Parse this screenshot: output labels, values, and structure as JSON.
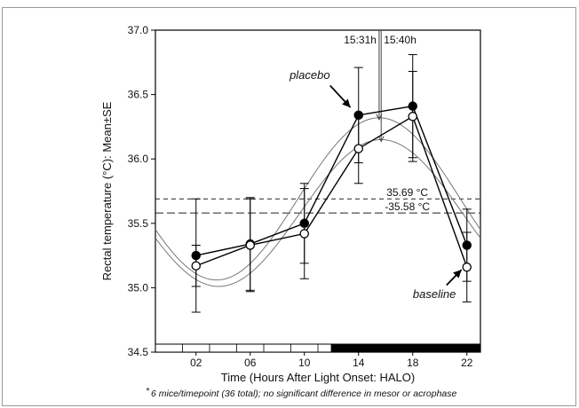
{
  "chart_data": {
    "type": "line",
    "xlabel": "Time (Hours After Light Onset: HALO)",
    "ylabel": "Rectal temperature (°C): Mean±SE",
    "ylim": [
      34.5,
      37.0
    ],
    "xlim": [
      -1,
      23
    ],
    "x_ticks": [
      "02",
      "06",
      "10",
      "14",
      "18",
      "22"
    ],
    "y_ticks": [
      "34.5",
      "35.0",
      "35.5",
      "36.0",
      "36.5",
      "37.0"
    ],
    "grid": false,
    "series": [
      {
        "name": "placebo",
        "marker": "filled-circle",
        "x": [
          2,
          6,
          10,
          14,
          18,
          22
        ],
        "values": [
          35.25,
          35.34,
          35.5,
          36.34,
          36.41,
          35.33
        ],
        "error": [
          0.44,
          0.36,
          0.31,
          0.37,
          0.4,
          0.28
        ]
      },
      {
        "name": "baseline",
        "marker": "open-circle",
        "x": [
          2,
          6,
          10,
          14,
          18,
          22
        ],
        "values": [
          35.17,
          35.33,
          35.42,
          36.08,
          36.33,
          35.16
        ],
        "error": [
          0.16,
          0.36,
          0.35,
          0.27,
          0.35,
          0.27
        ]
      }
    ],
    "cosinor_fits": [
      {
        "mesor": 35.69,
        "acrophase": 15.52,
        "amplitude": 0.63
      },
      {
        "mesor": 35.58,
        "acrophase": 15.67,
        "amplitude": 0.57
      }
    ],
    "mesor_lines": [
      {
        "value": 35.69,
        "label": "35.69 °C"
      },
      {
        "value": 35.58,
        "label": "-35.58 °C"
      }
    ],
    "acrophase_markers": [
      {
        "x": 15.52,
        "label": "15:31h"
      },
      {
        "x": 15.67,
        "label": "15:40h"
      }
    ],
    "light_dark": {
      "light": [
        -1,
        12
      ],
      "dark": [
        12,
        23
      ]
    },
    "footnote_star": "*",
    "footnote": "6 mice/timepoint (36 total);  no significant difference in mesor or acrophase"
  }
}
